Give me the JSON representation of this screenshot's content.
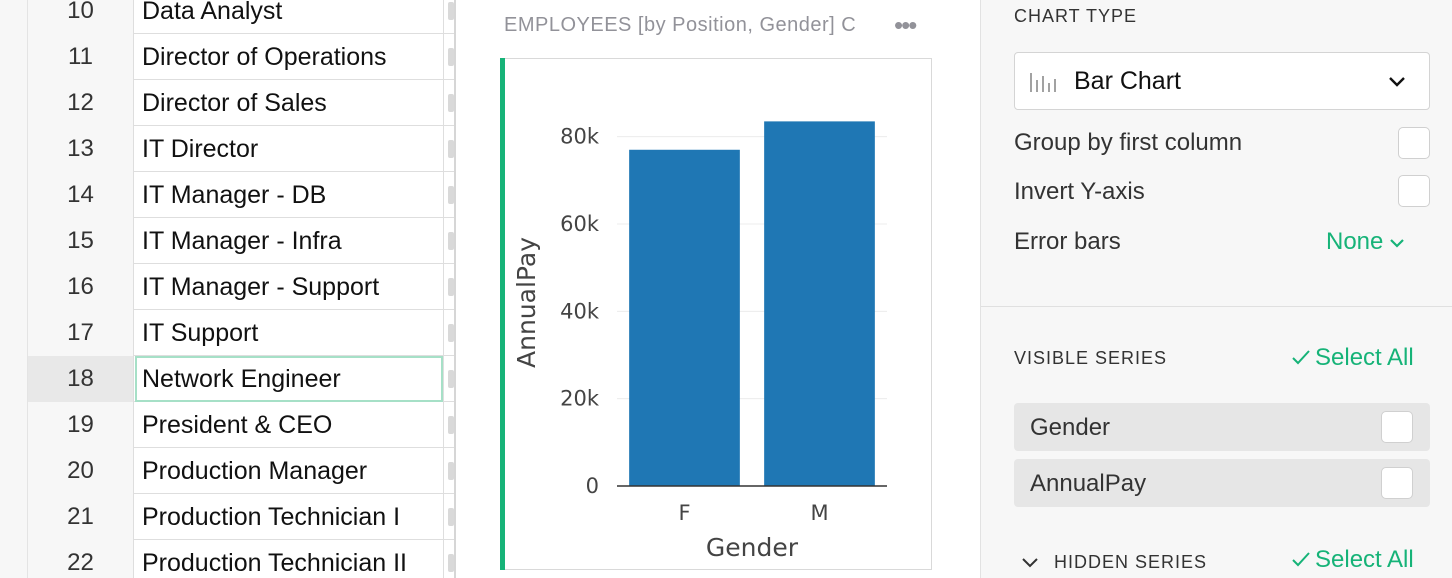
{
  "grid": {
    "rows": [
      {
        "num": "10",
        "position": "Data Analyst"
      },
      {
        "num": "11",
        "position": "Director of Operations"
      },
      {
        "num": "12",
        "position": "Director of Sales"
      },
      {
        "num": "13",
        "position": "IT Director"
      },
      {
        "num": "14",
        "position": "IT Manager - DB"
      },
      {
        "num": "15",
        "position": "IT Manager - Infra"
      },
      {
        "num": "16",
        "position": "IT Manager - Support"
      },
      {
        "num": "17",
        "position": "IT Support"
      },
      {
        "num": "18",
        "position": "Network Engineer",
        "selected": true
      },
      {
        "num": "19",
        "position": "President & CEO"
      },
      {
        "num": "20",
        "position": "Production Manager"
      },
      {
        "num": "21",
        "position": "Production Technician I"
      },
      {
        "num": "22",
        "position": "Production Technician II"
      }
    ]
  },
  "chart_section": {
    "title": "EMPLOYEES [by Position, Gender] C",
    "menu_icon": "more-horizontal-icon",
    "accent_color": "#16b378"
  },
  "chart_data": {
    "type": "bar",
    "categories": [
      "F",
      "M"
    ],
    "values": [
      77000,
      83500
    ],
    "series": [
      {
        "name": "AnnualPay",
        "values": [
          77000,
          83500
        ],
        "color": "#1f77b4"
      }
    ],
    "xlabel": "Gender",
    "ylabel": "AnnualPay",
    "ylim": [
      0,
      90000
    ],
    "yticks": [
      0,
      20000,
      40000,
      60000,
      80000
    ],
    "ytick_labels": [
      "0",
      "20k",
      "40k",
      "60k",
      "80k"
    ],
    "grid": true
  },
  "panel": {
    "chart_type_title": "CHART TYPE",
    "chart_type_value": "Bar Chart",
    "chart_type_icon": "bar-chart-icon",
    "options": {
      "group_by_first_column": "Group by first column",
      "invert_y_axis": "Invert Y-axis",
      "error_bars": "Error bars",
      "error_bars_value": "None"
    },
    "visible_series_title": "VISIBLE SERIES",
    "select_all_label": "Select All",
    "visible_series": [
      "Gender",
      "AnnualPay"
    ],
    "hidden_series_title": "HIDDEN SERIES",
    "accent_color": "#16b378"
  }
}
